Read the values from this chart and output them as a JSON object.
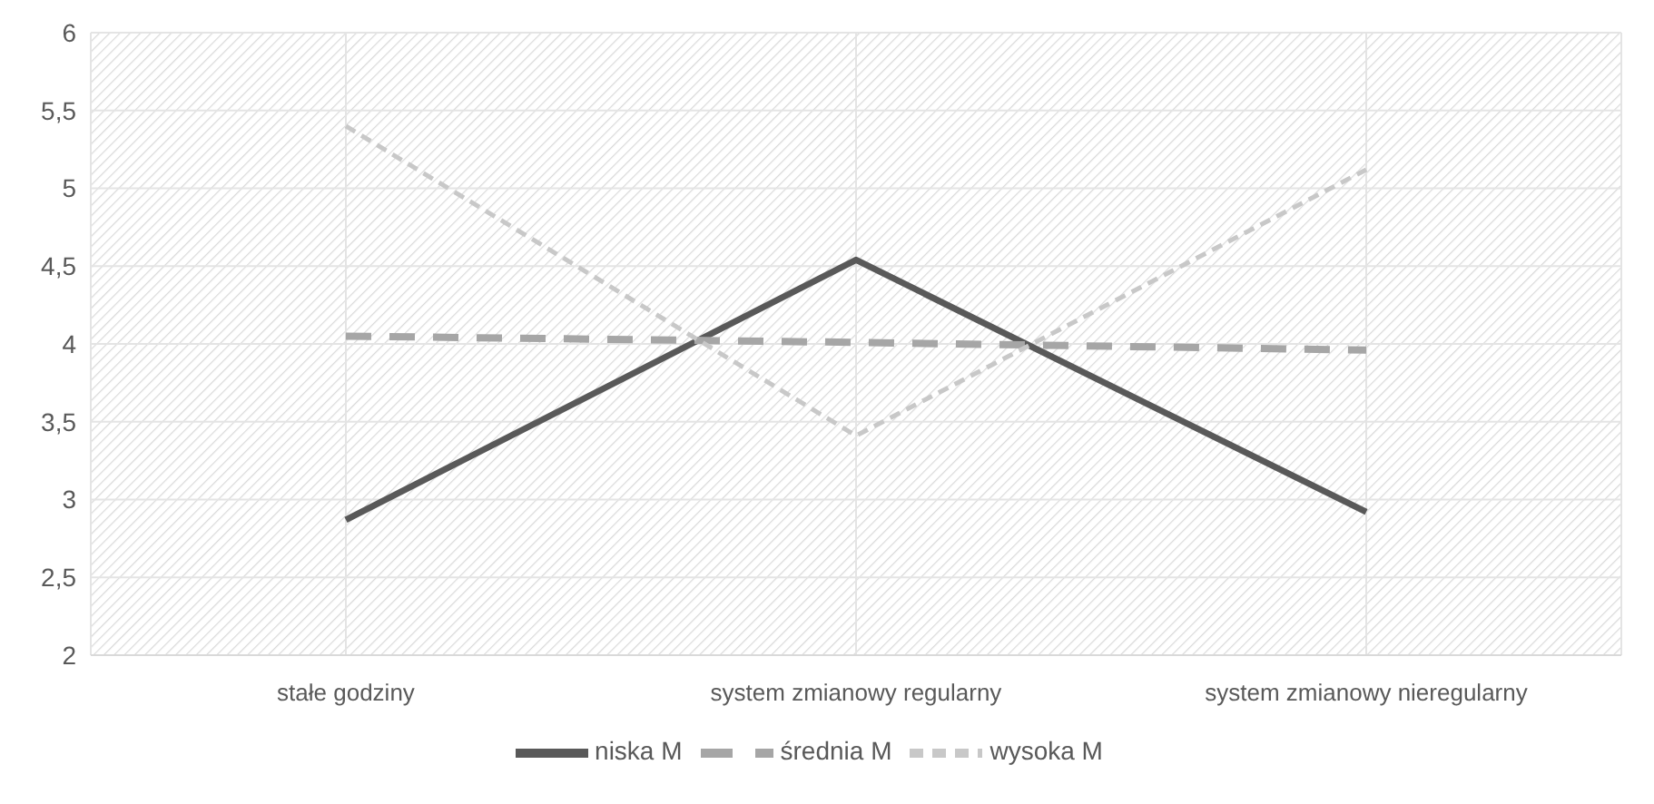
{
  "chart_data": {
    "type": "line",
    "categories": [
      "stałe godziny",
      "system zmianowy regularny",
      "system zmianowy nieregularny"
    ],
    "series": [
      {
        "name": "niska M",
        "color": "#595959",
        "values": [
          2.87,
          4.54,
          2.92
        ],
        "line_style": "solid"
      },
      {
        "name": "średnia M",
        "color": "#a6a6a6",
        "values": [
          4.05,
          4.01,
          3.96
        ],
        "line_style": "dashed"
      },
      {
        "name": "wysoka M",
        "color": "#c8c8c8",
        "values": [
          5.4,
          3.41,
          5.12
        ],
        "line_style": "dashed"
      }
    ],
    "ylim": [
      2,
      6
    ],
    "yticks": [
      2,
      {
        "value": 2.5,
        "label": "2,5"
      },
      3,
      {
        "value": 3.5,
        "label": "3,5"
      },
      4,
      {
        "value": 4.5,
        "label": "4,5"
      },
      5,
      {
        "value": 5.5,
        "label": "5,5"
      },
      6
    ],
    "grid": true,
    "legend": "bottom",
    "marker": "none"
  }
}
